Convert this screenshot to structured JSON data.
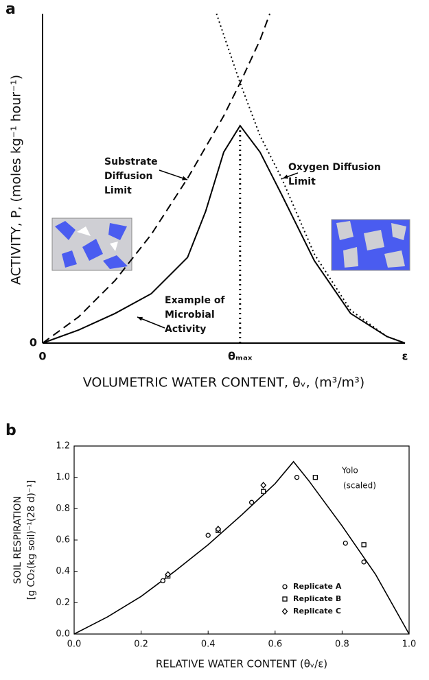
{
  "chart_data": [
    {
      "type": "line",
      "panel_label": "a",
      "x_label": "VOLUMETRIC WATER CONTENT, θᵥ, (m³/m³)",
      "y_label": "ACTIVITY, P, (moles kg⁻¹ hour⁻¹)",
      "xlim": [
        0,
        1
      ],
      "ylim": [
        0,
        1
      ],
      "xticks": [
        0,
        {
          "value": 0.545,
          "label": "θₘₐₓ"
        },
        {
          "value": 1,
          "label": "ε"
        }
      ],
      "yticks": [
        0
      ],
      "series": [
        {
          "style": "dashed",
          "color": "#000000",
          "x": [
            0,
            0.1,
            0.2,
            0.3,
            0.4,
            0.5,
            0.545,
            0.6,
            0.627
          ],
          "values": [
            0,
            0.08,
            0.19,
            0.33,
            0.5,
            0.69,
            0.79,
            0.92,
            1.0
          ]
        },
        {
          "style": "dotted",
          "color": "#000000",
          "x": [
            0.48,
            0.545,
            0.6,
            0.66,
            0.75,
            0.85,
            0.95,
            1.0
          ],
          "values": [
            1.0,
            0.79,
            0.63,
            0.5,
            0.27,
            0.1,
            0.02,
            0
          ]
        },
        {
          "style": "solid",
          "color": "#000000",
          "x": [
            0,
            0.1,
            0.2,
            0.3,
            0.4,
            0.45,
            0.5,
            0.545,
            0.6,
            0.66,
            0.75,
            0.85,
            0.95,
            1.0
          ],
          "values": [
            0,
            0.04,
            0.09,
            0.15,
            0.26,
            0.4,
            0.58,
            0.66,
            0.58,
            0.45,
            0.25,
            0.09,
            0.02,
            0
          ]
        }
      ],
      "annotations": [
        {
          "text": [
            "Substrate",
            "Diffusion",
            "Limit"
          ]
        },
        {
          "text": [
            "Oxygen Diffusion",
            "Limit"
          ]
        },
        {
          "text": [
            "Example of",
            "Microbial",
            "Activity"
          ]
        }
      ]
    },
    {
      "type": "scatter",
      "panel_label": "b",
      "x_label": "RELATIVE WATER CONTENT (θᵥ/ε)",
      "y_label": [
        "SOIL RESPIRATION",
        "[g CO₂(kg soil)⁻¹(28 d)⁻¹]"
      ],
      "xlim": [
        0,
        1
      ],
      "ylim": [
        0,
        1.2
      ],
      "xticks": [
        {
          "value": 0,
          "label": "0.0"
        },
        0.2,
        0.4,
        0.6,
        0.8,
        {
          "value": 1,
          "label": "1.0"
        }
      ],
      "yticks": [
        {
          "value": 0,
          "label": "0.0"
        },
        0.2,
        0.4,
        0.6,
        0.8,
        {
          "value": 1,
          "label": "1.0"
        },
        1.2
      ],
      "legend": "lower right",
      "series": [
        {
          "name": "Replicate A",
          "marker": "circle",
          "color": "#000000",
          "x": [
            0.265,
            0.4,
            0.53,
            0.665,
            0.81,
            0.865
          ],
          "values": [
            0.34,
            0.63,
            0.84,
            1.0,
            0.58,
            0.46
          ]
        },
        {
          "name": "Replicate B",
          "marker": "square",
          "color": "#000000",
          "x": [
            0.28,
            0.43,
            0.565,
            0.72,
            0.865
          ],
          "values": [
            0.37,
            0.66,
            0.91,
            1.0,
            0.57
          ]
        },
        {
          "name": "Replicate C",
          "marker": "diamond",
          "color": "#000000",
          "x": [
            0.28,
            0.43,
            0.565
          ],
          "values": [
            0.38,
            0.67,
            0.95
          ]
        }
      ],
      "curve": {
        "color": "#000000",
        "x": [
          0,
          0.1,
          0.2,
          0.3,
          0.4,
          0.5,
          0.6,
          0.655,
          0.7,
          0.8,
          0.9,
          1.0
        ],
        "values": [
          0,
          0.11,
          0.24,
          0.4,
          0.57,
          0.76,
          0.96,
          1.1,
          0.98,
          0.69,
          0.38,
          0
        ]
      },
      "annotation": [
        "Yolo",
        "(scaled)"
      ]
    }
  ]
}
